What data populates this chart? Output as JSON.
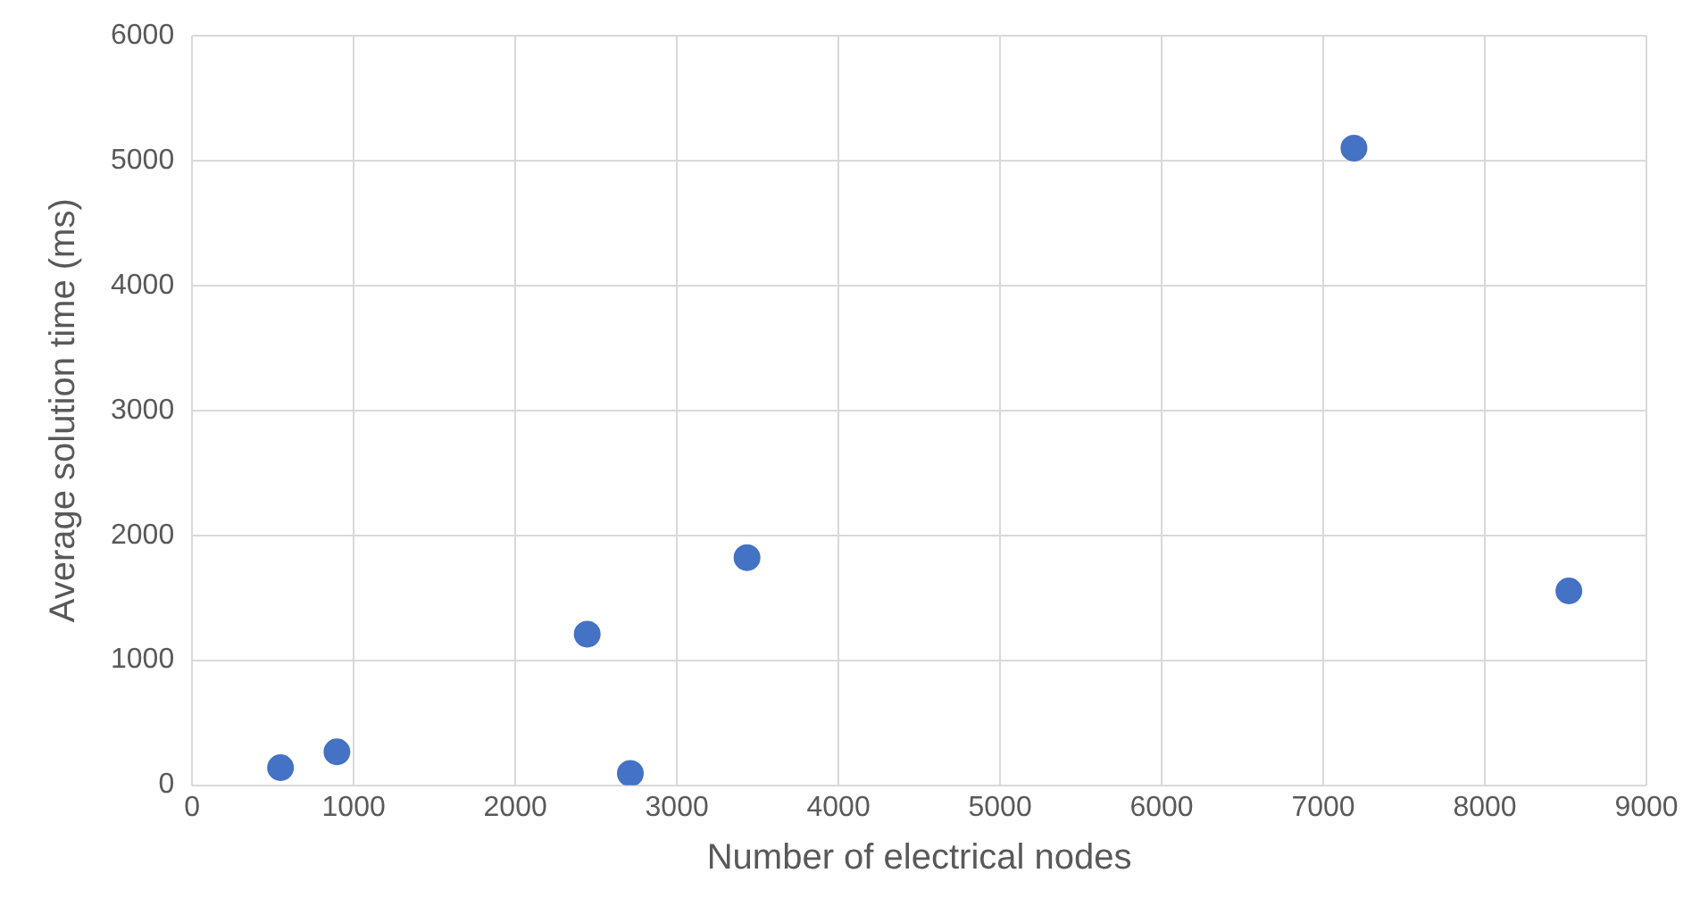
{
  "chart_data": {
    "type": "scatter",
    "xlabel": "Number of electrical nodes",
    "ylabel": "Average solution time (ms)",
    "series": [
      {
        "color": "#4472c4",
        "x": [
          547,
          896,
          2445,
          2712,
          3434,
          7190,
          8520
        ],
        "values": [
          140,
          267,
          1209,
          94,
          1822,
          5100,
          1555
        ]
      }
    ],
    "xlim": [
      0,
      9000
    ],
    "xticks": [
      0,
      1000,
      2000,
      3000,
      4000,
      5000,
      6000,
      7000,
      8000,
      9000
    ],
    "ylim": [
      0,
      6000
    ],
    "yticks": [
      0,
      1000,
      2000,
      3000,
      4000,
      5000,
      6000
    ],
    "grid": true,
    "legend": false,
    "marker": "circle"
  }
}
